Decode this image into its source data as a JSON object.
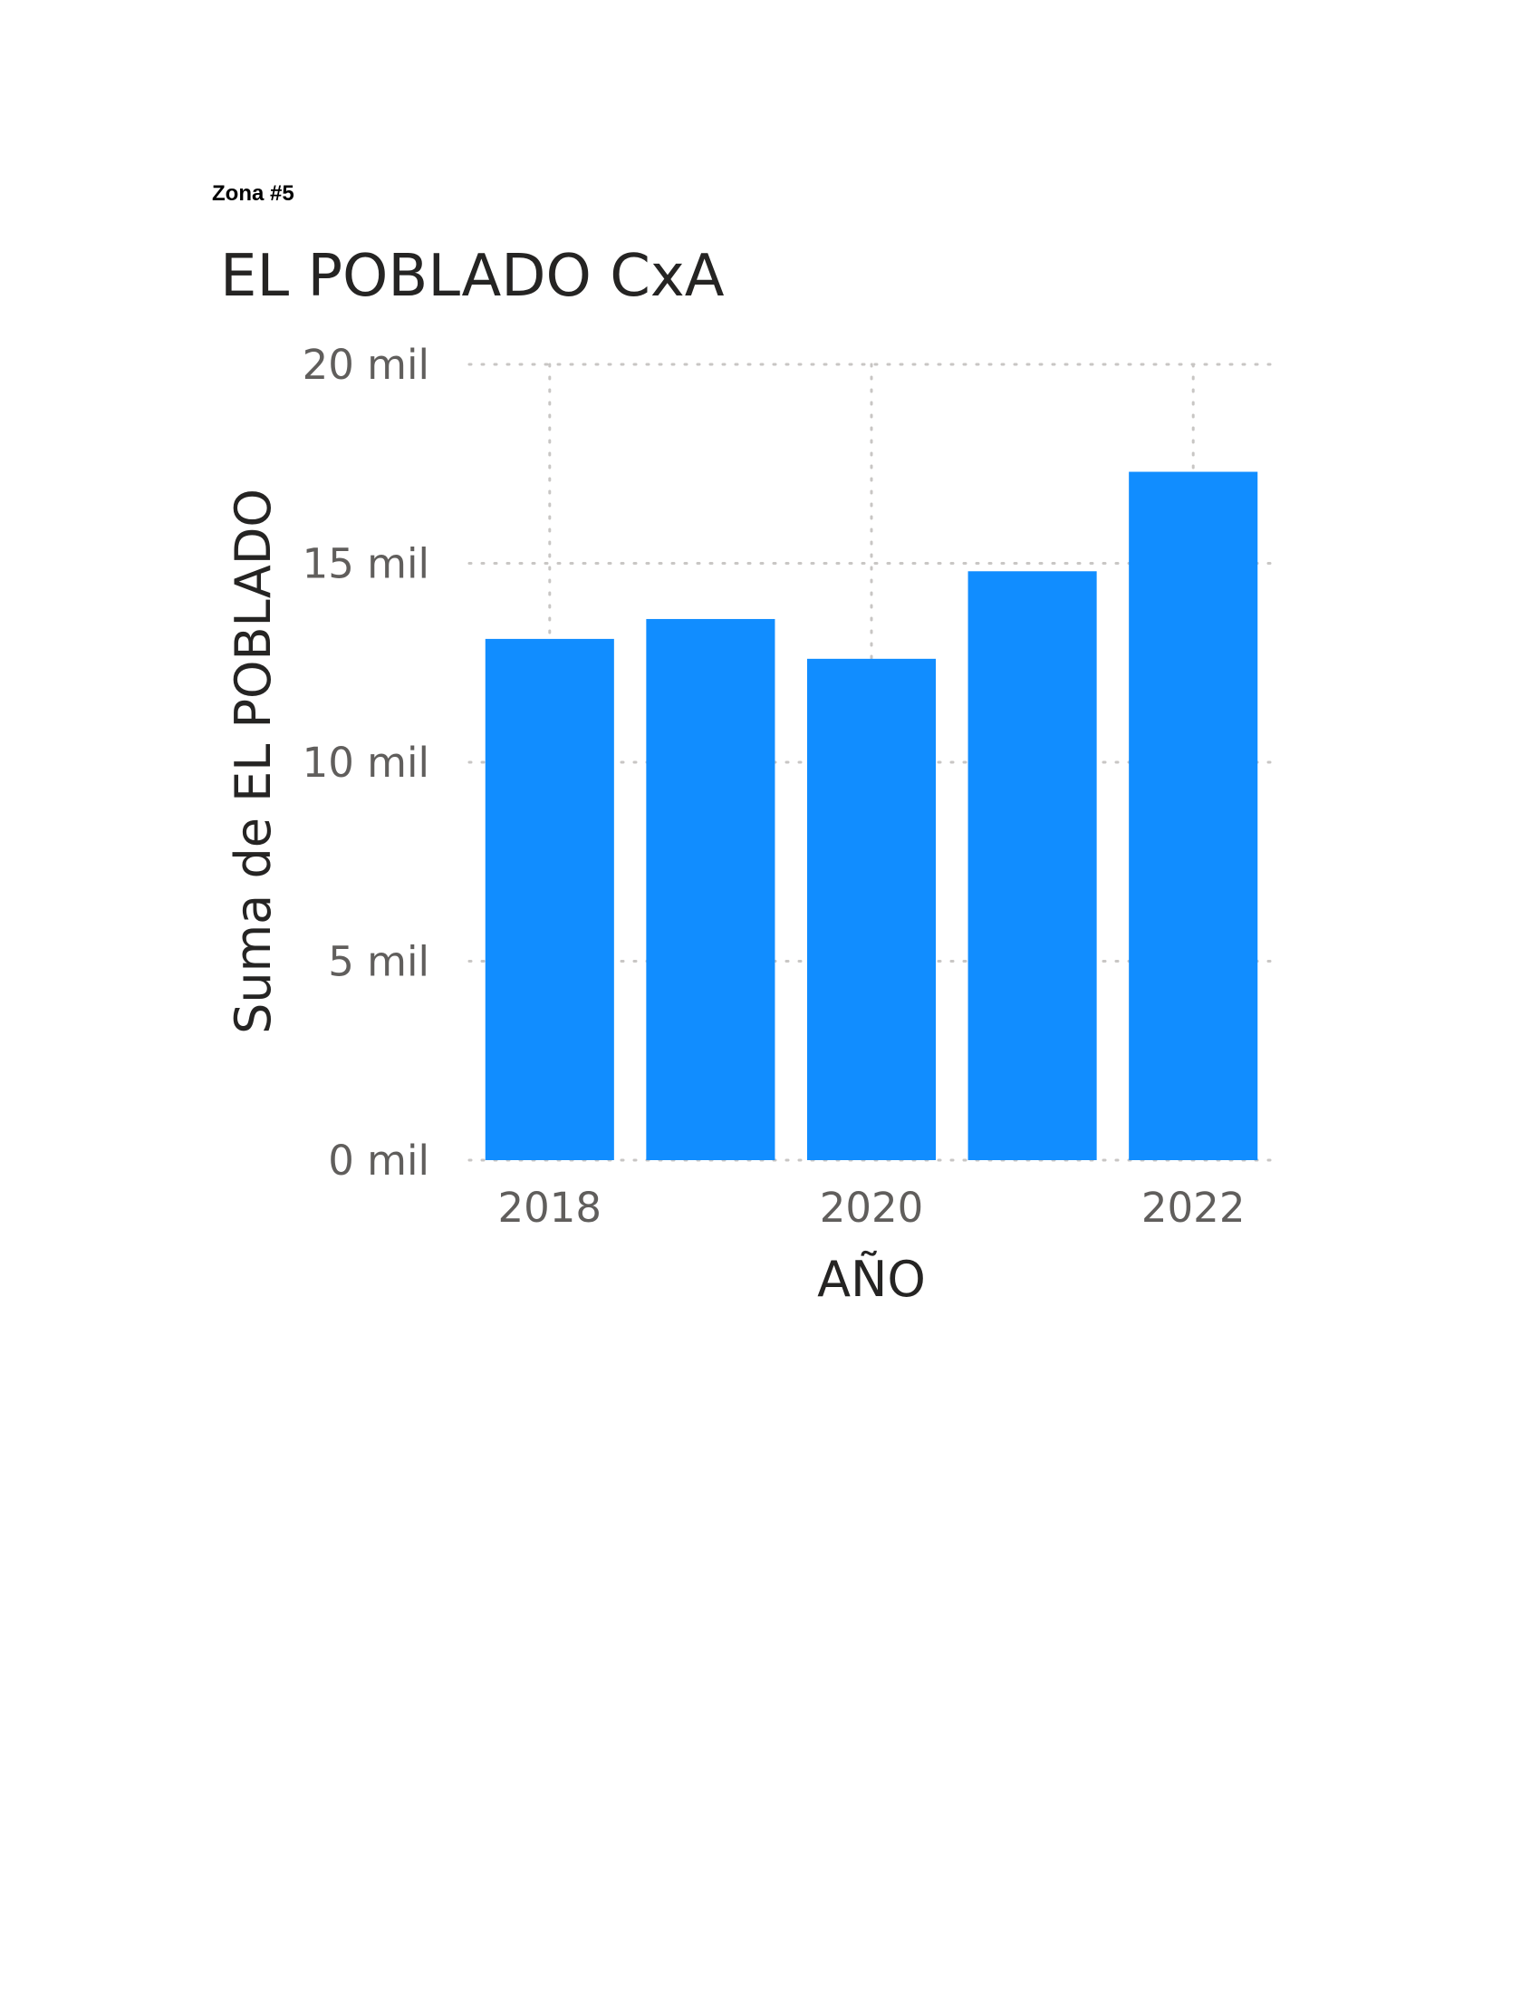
{
  "page": {
    "label": "Zona #5"
  },
  "chart_data": {
    "type": "bar",
    "title": "EL POBLADO CxA",
    "xlabel": "AÑO",
    "ylabel": "Suma de EL POBLADO",
    "x": [
      2018,
      2019,
      2020,
      2021,
      2022
    ],
    "x_tick_labels": [
      "2018",
      "2020",
      "2022"
    ],
    "values": [
      13100,
      13600,
      12600,
      14800,
      17300
    ],
    "ylim": [
      0,
      20000
    ],
    "y_ticks": [
      {
        "value": 0,
        "label": "0 mil"
      },
      {
        "value": 5000,
        "label": "5 mil"
      },
      {
        "value": 10000,
        "label": "10 mil"
      },
      {
        "value": 15000,
        "label": "15 mil"
      },
      {
        "value": 20000,
        "label": "20 mil"
      }
    ],
    "grid": true,
    "bar_color": "#118DFF"
  }
}
